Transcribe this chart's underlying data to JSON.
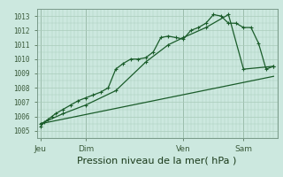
{
  "background_color": "#cce8df",
  "plot_bg_color": "#cce8df",
  "grid_color": "#aaccbb",
  "line_color": "#1a5c2a",
  "ylim": [
    1004.5,
    1013.5
  ],
  "yticks": [
    1005,
    1006,
    1007,
    1008,
    1009,
    1010,
    1011,
    1012,
    1013
  ],
  "xlabel": "Pression niveau de la mer( hPa )",
  "xlabel_fontsize": 8,
  "day_labels": [
    "Jeu",
    "Dim",
    "Ven",
    "Sam"
  ],
  "day_positions": [
    0.5,
    6.5,
    19.5,
    27.5
  ],
  "xlim": [
    0,
    32
  ],
  "series1_x": [
    0.5,
    1.0,
    1.5,
    2.0,
    2.5,
    3.5,
    4.5,
    5.5,
    6.5,
    7.5,
    8.5,
    9.5,
    10.5,
    11.5,
    12.5,
    13.5,
    14.5,
    15.5,
    16.5,
    17.5,
    18.5,
    19.5,
    20.5,
    21.5,
    22.5,
    23.5,
    24.5,
    25.5,
    26.5,
    27.5,
    28.5,
    29.5,
    30.5,
    31.5
  ],
  "series1_y": [
    1005.3,
    1005.6,
    1005.8,
    1006.0,
    1006.2,
    1006.5,
    1006.8,
    1007.1,
    1007.3,
    1007.5,
    1007.7,
    1008.0,
    1009.3,
    1009.7,
    1010.0,
    1010.0,
    1010.1,
    1010.5,
    1011.5,
    1011.6,
    1011.5,
    1011.4,
    1012.0,
    1012.2,
    1012.5,
    1013.1,
    1013.0,
    1012.5,
    1012.5,
    1012.2,
    1012.2,
    1011.1,
    1009.3,
    1009.5
  ],
  "series2_x": [
    0.5,
    3.5,
    6.5,
    10.5,
    14.5,
    17.5,
    19.5,
    22.5,
    25.5,
    27.5,
    31.5
  ],
  "series2_y": [
    1005.5,
    1006.2,
    1006.8,
    1007.8,
    1009.8,
    1011.0,
    1011.5,
    1012.2,
    1013.1,
    1009.3,
    1009.5
  ],
  "series3_x": [
    0.5,
    31.5
  ],
  "series3_y": [
    1005.5,
    1008.8
  ],
  "vline_x": [
    0.5,
    6.5,
    19.5,
    27.5
  ]
}
